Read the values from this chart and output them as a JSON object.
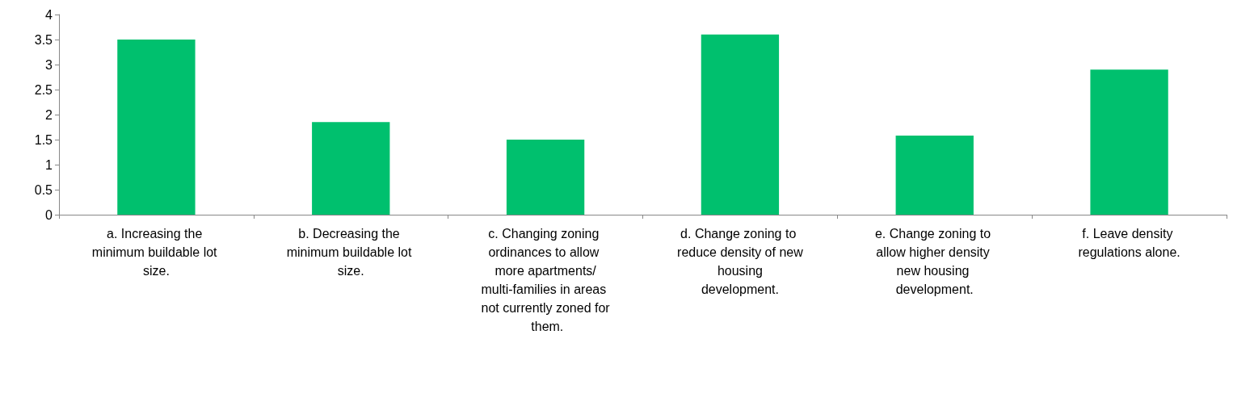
{
  "chart_data": {
    "type": "bar",
    "categories": [
      "a. Increasing the minimum buildable lot size.",
      "b. Decreasing the minimum buildable lot size.",
      "c. Changing zoning ordinances to allow more apartments/multi-families in areas not currently zoned for them.",
      "d. Change zoning to reduce density of new housing development.",
      "e. Change zoning to allow higher density new housing development.",
      "f. Leave density regulations alone."
    ],
    "values": [
      3.5,
      1.85,
      1.5,
      3.6,
      1.58,
      2.9
    ],
    "color": "#00c06e",
    "ylim": [
      0,
      4
    ],
    "yticks": [
      0,
      0.5,
      1,
      1.5,
      2,
      2.5,
      3,
      3.5,
      4
    ],
    "grid": false
  }
}
